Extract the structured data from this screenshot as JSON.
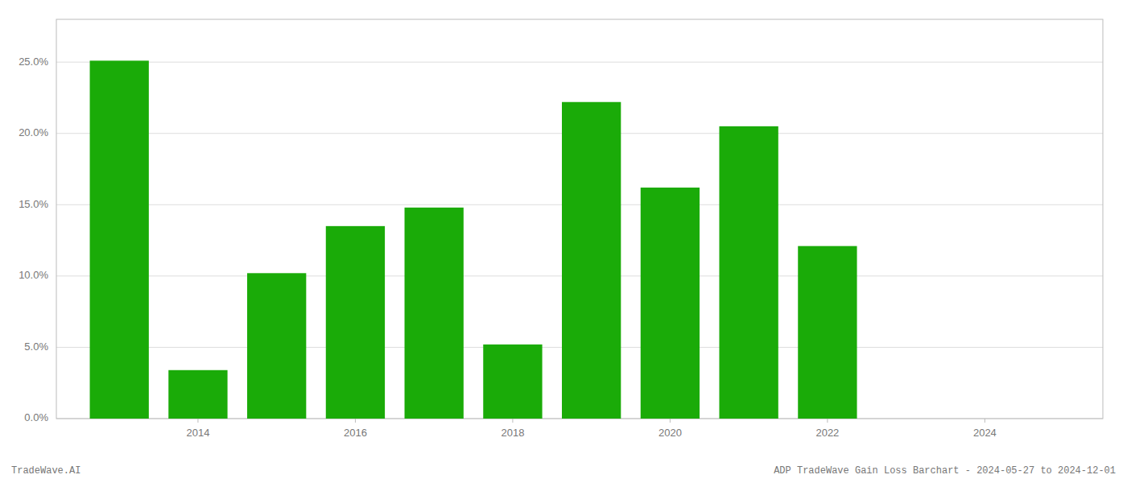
{
  "chart_data": {
    "type": "bar",
    "x": [
      2013,
      2014,
      2015,
      2016,
      2017,
      2018,
      2019,
      2020,
      2021,
      2022
    ],
    "values": [
      0.251,
      0.034,
      0.102,
      0.135,
      0.148,
      0.052,
      0.222,
      0.162,
      0.205,
      0.121
    ],
    "color": "#1aab08",
    "xlim": [
      2012.2,
      2025.5
    ],
    "xticks": [
      2014,
      2016,
      2018,
      2020,
      2022,
      2024
    ],
    "ylim": [
      0,
      0.28
    ],
    "yticks": [
      {
        "value": 0.0,
        "label": "0.0%"
      },
      {
        "value": 0.05,
        "label": "5.0%"
      },
      {
        "value": 0.1,
        "label": "10.0%"
      },
      {
        "value": 0.15,
        "label": "15.0%"
      },
      {
        "value": 0.2,
        "label": "20.0%"
      },
      {
        "value": 0.25,
        "label": "25.0%"
      }
    ],
    "grid": true,
    "annotations": [
      "TradeWave.AI",
      "ADP TradeWave Gain Loss Barchart - 2024-05-27 to 2024-12-01"
    ]
  }
}
